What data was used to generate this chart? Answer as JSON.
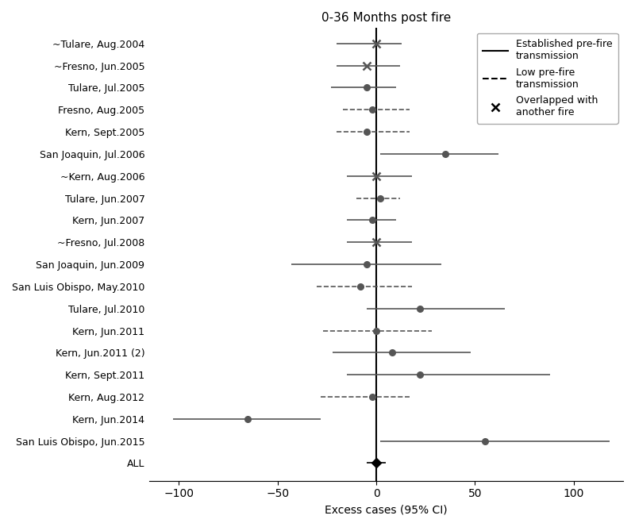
{
  "title": "0-36 Months post fire",
  "xlabel": "Excess cases (95% CI)",
  "labels": [
    "~Tulare, Aug.2004",
    "~Fresno, Jun.2005",
    "Tulare, Jul.2005",
    "Fresno, Aug.2005",
    "Kern, Sept.2005",
    "San Joaquin, Jul.2006",
    "~Kern, Aug.2006",
    "Tulare, Jun.2007",
    "Kern, Jun.2007",
    "~Fresno, Jul.2008",
    "San Joaquin, Jun.2009",
    "San Luis Obispo, May.2010",
    "Tulare, Jul.2010",
    "Kern, Jun.2011",
    "Kern, Jun.2011 (2)",
    "Kern, Sept.2011",
    "Kern, Aug.2012",
    "Kern, Jun.2014",
    "San Luis Obispo, Jun.2015",
    "ALL"
  ],
  "estimates": [
    0,
    -5,
    -5,
    -2,
    -5,
    35,
    0,
    2,
    -2,
    0,
    -5,
    -8,
    22,
    0,
    8,
    22,
    -2,
    -65,
    55,
    0
  ],
  "ci_low": [
    -20,
    -20,
    -23,
    -17,
    -20,
    2,
    -15,
    -10,
    -15,
    -15,
    -43,
    -30,
    -5,
    -27,
    -22,
    -15,
    -28,
    -103,
    2,
    -5
  ],
  "ci_high": [
    13,
    12,
    10,
    17,
    17,
    62,
    18,
    12,
    10,
    18,
    33,
    18,
    65,
    28,
    48,
    88,
    17,
    -28,
    118,
    5
  ],
  "low_pre_fire": [
    false,
    false,
    false,
    true,
    true,
    false,
    false,
    true,
    false,
    false,
    false,
    true,
    false,
    true,
    false,
    false,
    true,
    false,
    false,
    false
  ],
  "overlapped": [
    true,
    true,
    false,
    false,
    false,
    false,
    true,
    false,
    false,
    true,
    false,
    false,
    false,
    false,
    false,
    false,
    false,
    false,
    false,
    false
  ],
  "is_all": [
    false,
    false,
    false,
    false,
    false,
    false,
    false,
    false,
    false,
    false,
    false,
    false,
    false,
    false,
    false,
    false,
    false,
    false,
    false,
    true
  ],
  "color": "#555555",
  "all_color": "#000000",
  "xlim": [
    -115,
    125
  ],
  "xticks": [
    -100,
    -50,
    0,
    50,
    100
  ],
  "legend_solid": "Established pre-fire\ntransmission",
  "legend_dashed": "Low pre-fire\ntransmission",
  "legend_x": "Overlapped with\nanother fire",
  "figsize": [
    8.0,
    6.64
  ],
  "dpi": 100
}
